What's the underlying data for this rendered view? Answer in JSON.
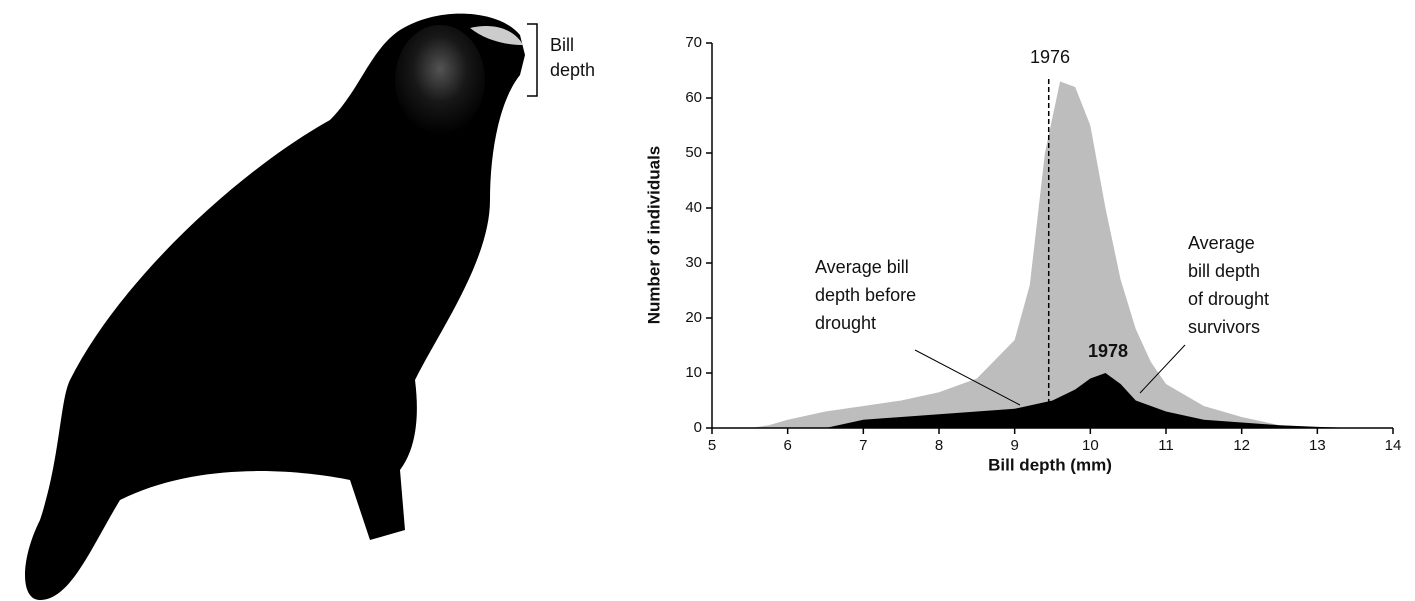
{
  "bird_label": [
    "Bill",
    "depth"
  ],
  "chart_data": {
    "type": "area",
    "x_label": "Bill depth (mm)",
    "y_label": "Number of individuals",
    "xlim": [
      5,
      14
    ],
    "xticks": [
      5,
      6,
      7,
      8,
      9,
      10,
      11,
      12,
      13,
      14
    ],
    "ylim": [
      0,
      70
    ],
    "yticks": [
      0,
      10,
      20,
      30,
      40,
      50,
      60,
      70
    ],
    "series": [
      {
        "name": "1976",
        "color": "#bdbdbd",
        "x": [
          5.5,
          5.75,
          6,
          6.5,
          7,
          7.5,
          8,
          8.5,
          9,
          9.2,
          9.4,
          9.6,
          9.8,
          10,
          10.2,
          10.4,
          10.6,
          10.8,
          11,
          11.5,
          12,
          12.5,
          13,
          13.5
        ],
        "values": [
          0,
          0.5,
          1.5,
          3,
          4,
          5,
          6.5,
          9,
          16,
          26,
          50,
          63,
          62,
          55,
          40,
          27,
          18,
          12,
          8,
          4,
          2,
          0.5,
          0.2,
          0
        ]
      },
      {
        "name": "1978",
        "color": "#000000",
        "x": [
          6.5,
          7,
          7.5,
          8,
          8.5,
          9,
          9.5,
          9.8,
          10,
          10.2,
          10.4,
          10.6,
          11,
          11.5,
          12,
          12.5,
          13,
          13.5
        ],
        "values": [
          0,
          1.5,
          2,
          2.5,
          3,
          3.5,
          5,
          7,
          9,
          10,
          8,
          5,
          3,
          1.5,
          1,
          0.5,
          0.2,
          0
        ]
      }
    ],
    "mean_line": {
      "x": 9.45,
      "y": 64
    },
    "annotations": [
      {
        "lines": [
          "Average bill",
          "depth before",
          "drought"
        ]
      },
      {
        "lines": [
          "Average",
          "bill depth",
          "of drought",
          "survivors"
        ]
      }
    ]
  }
}
